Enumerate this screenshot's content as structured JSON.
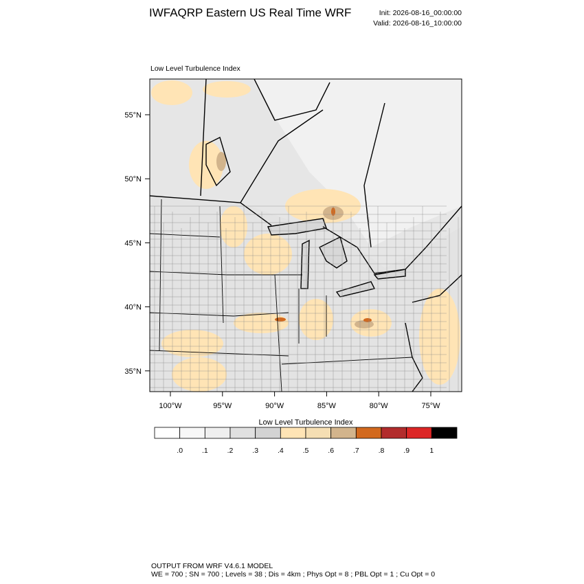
{
  "header": {
    "title": "IWFAQRP Eastern US Real Time WRF",
    "init": "Init: 2026-08-16_00:00:00",
    "valid": "Valid: 2026-08-16_10:00:00"
  },
  "map": {
    "subtitle": "Low Level Turbulence Index",
    "lat_labels": [
      "55°N",
      "50°N",
      "45°N",
      "40°N",
      "35°N"
    ],
    "lon_labels": [
      "100°W",
      "95°W",
      "90°W",
      "85°W",
      "80°W",
      "75°W"
    ]
  },
  "colorbar": {
    "title": "Low Level Turbulence Index",
    "colors": [
      "#ffffff",
      "#f7f7f7",
      "#efefef",
      "#e0e0e0",
      "#d3d3d3",
      "#ffe4b5",
      "#f5deb3",
      "#d2b48c",
      "#d2691e",
      "#b22c2c",
      "#dc2626",
      "#000000"
    ],
    "labels": [
      ".0",
      ".1",
      ".2",
      ".3",
      ".4",
      ".5",
      ".6",
      ".7",
      ".8",
      ".9",
      "1"
    ]
  },
  "footer": {
    "line1": "OUTPUT FROM WRF V4.6.1 MODEL",
    "line2": "WE = 700 ; SN = 700 ; Levels = 38 ; Dis = 4km ; Phys Opt = 8 ; PBL Opt = 1 ; Cu Opt = 0"
  }
}
